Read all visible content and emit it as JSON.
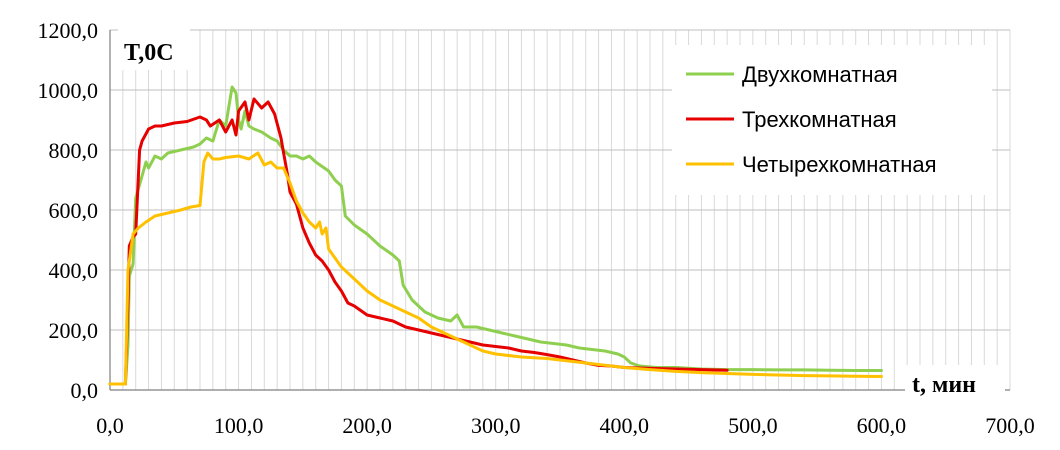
{
  "chart_data": {
    "type": "line",
    "ylabel": "T,0C",
    "xlabel": "t, мин",
    "xlim": [
      0,
      700
    ],
    "ylim": [
      0,
      1200
    ],
    "x_ticks": [
      "0,0",
      "100,0",
      "200,0",
      "300,0",
      "400,0",
      "500,0",
      "600,0",
      "700,0"
    ],
    "y_ticks": [
      "0,0",
      "200,0",
      "400,0",
      "600,0",
      "800,0",
      "1000,0",
      "1200,0"
    ],
    "grid": true,
    "legend_position": "top-right",
    "series": [
      {
        "name": "Двухкомнатная",
        "color": "#8fcf4f",
        "points": [
          [
            0,
            20
          ],
          [
            12,
            20
          ],
          [
            14,
            150
          ],
          [
            15,
            380
          ],
          [
            18,
            420
          ],
          [
            20,
            640
          ],
          [
            24,
            700
          ],
          [
            28,
            760
          ],
          [
            30,
            740
          ],
          [
            35,
            780
          ],
          [
            40,
            770
          ],
          [
            45,
            790
          ],
          [
            55,
            800
          ],
          [
            65,
            810
          ],
          [
            70,
            820
          ],
          [
            75,
            840
          ],
          [
            80,
            830
          ],
          [
            85,
            900
          ],
          [
            90,
            880
          ],
          [
            93,
            960
          ],
          [
            95,
            1010
          ],
          [
            98,
            990
          ],
          [
            100,
            900
          ],
          [
            102,
            870
          ],
          [
            105,
            930
          ],
          [
            108,
            880
          ],
          [
            112,
            870
          ],
          [
            118,
            860
          ],
          [
            125,
            840
          ],
          [
            130,
            830
          ],
          [
            135,
            800
          ],
          [
            140,
            780
          ],
          [
            145,
            780
          ],
          [
            150,
            770
          ],
          [
            155,
            780
          ],
          [
            160,
            760
          ],
          [
            170,
            730
          ],
          [
            175,
            700
          ],
          [
            180,
            680
          ],
          [
            183,
            580
          ],
          [
            190,
            550
          ],
          [
            200,
            520
          ],
          [
            210,
            480
          ],
          [
            220,
            450
          ],
          [
            225,
            430
          ],
          [
            228,
            350
          ],
          [
            235,
            300
          ],
          [
            245,
            260
          ],
          [
            255,
            240
          ],
          [
            265,
            230
          ],
          [
            270,
            250
          ],
          [
            275,
            210
          ],
          [
            285,
            210
          ],
          [
            295,
            200
          ],
          [
            305,
            190
          ],
          [
            315,
            180
          ],
          [
            325,
            170
          ],
          [
            335,
            160
          ],
          [
            345,
            155
          ],
          [
            355,
            150
          ],
          [
            365,
            140
          ],
          [
            375,
            135
          ],
          [
            385,
            130
          ],
          [
            395,
            120
          ],
          [
            400,
            110
          ],
          [
            405,
            90
          ],
          [
            412,
            80
          ],
          [
            425,
            75
          ],
          [
            440,
            75
          ],
          [
            460,
            70
          ],
          [
            480,
            68
          ],
          [
            500,
            68
          ],
          [
            520,
            67
          ],
          [
            540,
            67
          ],
          [
            560,
            66
          ],
          [
            580,
            65
          ],
          [
            600,
            65
          ]
        ]
      },
      {
        "name": "Трехкомнатная",
        "color": "#e60000",
        "points": [
          [
            0,
            20
          ],
          [
            12,
            20
          ],
          [
            14,
            300
          ],
          [
            15,
            480
          ],
          [
            18,
            510
          ],
          [
            20,
            520
          ],
          [
            23,
            800
          ],
          [
            25,
            830
          ],
          [
            30,
            870
          ],
          [
            35,
            880
          ],
          [
            40,
            880
          ],
          [
            50,
            890
          ],
          [
            60,
            895
          ],
          [
            70,
            910
          ],
          [
            75,
            900
          ],
          [
            78,
            880
          ],
          [
            85,
            900
          ],
          [
            90,
            860
          ],
          [
            95,
            900
          ],
          [
            98,
            850
          ],
          [
            100,
            930
          ],
          [
            105,
            960
          ],
          [
            108,
            900
          ],
          [
            112,
            970
          ],
          [
            118,
            940
          ],
          [
            123,
            960
          ],
          [
            128,
            920
          ],
          [
            133,
            840
          ],
          [
            135,
            790
          ],
          [
            138,
            720
          ],
          [
            140,
            660
          ],
          [
            145,
            620
          ],
          [
            150,
            540
          ],
          [
            155,
            490
          ],
          [
            160,
            450
          ],
          [
            165,
            430
          ],
          [
            170,
            400
          ],
          [
            175,
            360
          ],
          [
            180,
            330
          ],
          [
            185,
            290
          ],
          [
            190,
            280
          ],
          [
            200,
            250
          ],
          [
            210,
            240
          ],
          [
            220,
            230
          ],
          [
            230,
            210
          ],
          [
            240,
            200
          ],
          [
            250,
            190
          ],
          [
            260,
            180
          ],
          [
            270,
            170
          ],
          [
            280,
            160
          ],
          [
            290,
            150
          ],
          [
            300,
            145
          ],
          [
            310,
            140
          ],
          [
            320,
            130
          ],
          [
            330,
            125
          ],
          [
            340,
            118
          ],
          [
            350,
            110
          ],
          [
            360,
            100
          ],
          [
            370,
            90
          ],
          [
            380,
            82
          ],
          [
            390,
            80
          ],
          [
            400,
            75
          ],
          [
            420,
            72
          ],
          [
            440,
            70
          ],
          [
            460,
            68
          ],
          [
            480,
            66
          ]
        ]
      },
      {
        "name": "Четырехкомнатная",
        "color": "#ffc000",
        "points": [
          [
            0,
            20
          ],
          [
            12,
            20
          ],
          [
            14,
            400
          ],
          [
            16,
            460
          ],
          [
            18,
            520
          ],
          [
            22,
            540
          ],
          [
            28,
            560
          ],
          [
            35,
            580
          ],
          [
            45,
            590
          ],
          [
            55,
            600
          ],
          [
            63,
            610
          ],
          [
            70,
            615
          ],
          [
            73,
            760
          ],
          [
            76,
            790
          ],
          [
            80,
            770
          ],
          [
            85,
            770
          ],
          [
            90,
            775
          ],
          [
            100,
            780
          ],
          [
            108,
            770
          ],
          [
            115,
            790
          ],
          [
            120,
            750
          ],
          [
            125,
            760
          ],
          [
            130,
            740
          ],
          [
            135,
            740
          ],
          [
            140,
            690
          ],
          [
            145,
            630
          ],
          [
            150,
            590
          ],
          [
            155,
            560
          ],
          [
            160,
            540
          ],
          [
            163,
            560
          ],
          [
            165,
            520
          ],
          [
            168,
            540
          ],
          [
            170,
            470
          ],
          [
            175,
            440
          ],
          [
            180,
            410
          ],
          [
            190,
            370
          ],
          [
            200,
            330
          ],
          [
            210,
            300
          ],
          [
            220,
            280
          ],
          [
            230,
            260
          ],
          [
            240,
            240
          ],
          [
            250,
            210
          ],
          [
            260,
            190
          ],
          [
            270,
            170
          ],
          [
            280,
            150
          ],
          [
            290,
            130
          ],
          [
            300,
            120
          ],
          [
            320,
            110
          ],
          [
            340,
            105
          ],
          [
            360,
            95
          ],
          [
            380,
            85
          ],
          [
            400,
            75
          ],
          [
            420,
            68
          ],
          [
            440,
            62
          ],
          [
            460,
            58
          ],
          [
            480,
            55
          ],
          [
            500,
            52
          ],
          [
            520,
            50
          ],
          [
            540,
            48
          ],
          [
            560,
            47
          ],
          [
            580,
            46
          ],
          [
            600,
            45
          ]
        ]
      }
    ]
  }
}
